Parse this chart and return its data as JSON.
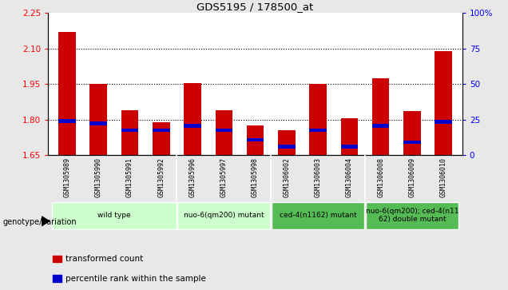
{
  "title": "GDS5195 / 178500_at",
  "samples": [
    "GSM1305989",
    "GSM1305990",
    "GSM1305991",
    "GSM1305992",
    "GSM1305996",
    "GSM1305997",
    "GSM1305998",
    "GSM1306002",
    "GSM1306003",
    "GSM1306004",
    "GSM1306008",
    "GSM1306009",
    "GSM1306010"
  ],
  "bar_heights": [
    2.17,
    1.95,
    1.84,
    1.79,
    1.955,
    1.84,
    1.775,
    1.755,
    1.95,
    1.805,
    1.975,
    1.835,
    2.09
  ],
  "blue_marker_y": [
    1.795,
    1.785,
    1.755,
    1.755,
    1.775,
    1.755,
    1.715,
    1.685,
    1.755,
    1.685,
    1.775,
    1.705,
    1.79
  ],
  "ylim_left": [
    1.65,
    2.25
  ],
  "ylim_right": [
    0,
    100
  ],
  "yticks_left": [
    1.65,
    1.8,
    1.95,
    2.1,
    2.25
  ],
  "yticks_right": [
    0,
    25,
    50,
    75,
    100
  ],
  "ytick_labels_right": [
    "0",
    "25",
    "50",
    "75",
    "100%"
  ],
  "hlines": [
    1.8,
    1.95,
    2.1
  ],
  "bar_color": "#CC0000",
  "blue_color": "#0000CC",
  "background_color": "#E8E8E8",
  "plot_bg": "#FFFFFF",
  "xtick_bg": "#C8C8C8",
  "groups": [
    {
      "label": "wild type",
      "indices": [
        0,
        1,
        2,
        3
      ],
      "color": "#CCFFCC"
    },
    {
      "label": "nuo-6(qm200) mutant",
      "indices": [
        4,
        5,
        6
      ],
      "color": "#CCFFCC"
    },
    {
      "label": "ced-4(n1162) mutant",
      "indices": [
        7,
        8,
        9
      ],
      "color": "#55BB55"
    },
    {
      "label": "nuo-6(qm200); ced-4(n11\n62) double mutant",
      "indices": [
        10,
        11,
        12
      ],
      "color": "#55BB55"
    }
  ],
  "group_boundaries_x": [
    -0.5,
    3.5,
    6.5,
    9.5,
    12.5
  ],
  "legend_items": [
    {
      "label": "transformed count",
      "color": "#CC0000"
    },
    {
      "label": "percentile rank within the sample",
      "color": "#0000CC"
    }
  ],
  "genotype_label": "genotype/variation",
  "bar_width": 0.55,
  "bar_base": 1.65
}
